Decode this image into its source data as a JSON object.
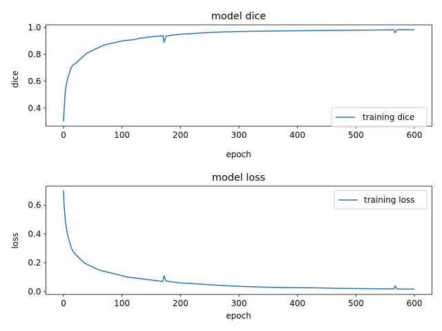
{
  "chart_data": [
    {
      "type": "line",
      "title": "model dice",
      "xlabel": "epoch",
      "ylabel": "dice",
      "xlim": [
        -30,
        630
      ],
      "ylim": [
        0.265,
        1.02
      ],
      "xticks": [
        0,
        100,
        200,
        300,
        400,
        500,
        600
      ],
      "xtick_labels": [
        "0",
        "100",
        "200",
        "300",
        "400",
        "500",
        "600"
      ],
      "yticks": [
        0.4,
        0.6,
        0.8,
        1.0
      ],
      "ytick_labels": [
        "0.4",
        "0.6",
        "0.8",
        "1.0"
      ],
      "legend_loc": "lower right",
      "grid": false,
      "series": [
        {
          "name": "training dice",
          "color": "#1f77b4",
          "x": [
            0,
            1,
            2,
            3,
            5,
            7,
            10,
            13,
            16,
            20,
            25,
            30,
            35,
            40,
            45,
            50,
            60,
            70,
            80,
            90,
            100,
            110,
            120,
            130,
            140,
            150,
            160,
            170,
            172,
            175,
            180,
            190,
            200,
            220,
            240,
            260,
            280,
            300,
            325,
            350,
            375,
            400,
            425,
            450,
            475,
            500,
            525,
            550,
            565,
            567,
            570,
            585,
            600
          ],
          "values": [
            0.3,
            0.38,
            0.45,
            0.52,
            0.58,
            0.62,
            0.66,
            0.7,
            0.72,
            0.73,
            0.75,
            0.77,
            0.79,
            0.81,
            0.82,
            0.83,
            0.85,
            0.87,
            0.88,
            0.89,
            0.9,
            0.905,
            0.91,
            0.92,
            0.925,
            0.93,
            0.935,
            0.94,
            0.89,
            0.935,
            0.94,
            0.945,
            0.95,
            0.955,
            0.96,
            0.965,
            0.968,
            0.97,
            0.972,
            0.974,
            0.975,
            0.976,
            0.977,
            0.978,
            0.979,
            0.98,
            0.981,
            0.982,
            0.983,
            0.96,
            0.983,
            0.984,
            0.983
          ]
        }
      ]
    },
    {
      "type": "line",
      "title": "model loss",
      "xlabel": "epoch",
      "ylabel": "loss",
      "xlim": [
        -30,
        630
      ],
      "ylim": [
        -0.02,
        0.73
      ],
      "xticks": [
        0,
        100,
        200,
        300,
        400,
        500,
        600
      ],
      "xtick_labels": [
        "0",
        "100",
        "200",
        "300",
        "400",
        "500",
        "600"
      ],
      "yticks": [
        0.0,
        0.2,
        0.4,
        0.6
      ],
      "ytick_labels": [
        "0.0",
        "0.2",
        "0.4",
        "0.6"
      ],
      "legend_loc": "upper right",
      "grid": false,
      "series": [
        {
          "name": "training loss",
          "color": "#1f77b4",
          "x": [
            0,
            1,
            2,
            3,
            5,
            7,
            10,
            13,
            16,
            20,
            25,
            30,
            35,
            40,
            45,
            50,
            60,
            70,
            80,
            90,
            100,
            110,
            120,
            130,
            140,
            150,
            160,
            170,
            172,
            175,
            180,
            190,
            200,
            220,
            240,
            260,
            280,
            300,
            325,
            350,
            375,
            400,
            425,
            450,
            475,
            500,
            525,
            550,
            565,
            567,
            570,
            585,
            600
          ],
          "values": [
            0.7,
            0.6,
            0.55,
            0.5,
            0.44,
            0.39,
            0.35,
            0.31,
            0.28,
            0.26,
            0.24,
            0.22,
            0.2,
            0.19,
            0.18,
            0.17,
            0.15,
            0.14,
            0.13,
            0.12,
            0.11,
            0.1,
            0.095,
            0.09,
            0.085,
            0.08,
            0.075,
            0.07,
            0.11,
            0.075,
            0.07,
            0.065,
            0.06,
            0.055,
            0.05,
            0.045,
            0.04,
            0.036,
            0.033,
            0.03,
            0.028,
            0.027,
            0.026,
            0.024,
            0.022,
            0.021,
            0.02,
            0.019,
            0.018,
            0.04,
            0.018,
            0.017,
            0.017
          ]
        }
      ]
    }
  ]
}
